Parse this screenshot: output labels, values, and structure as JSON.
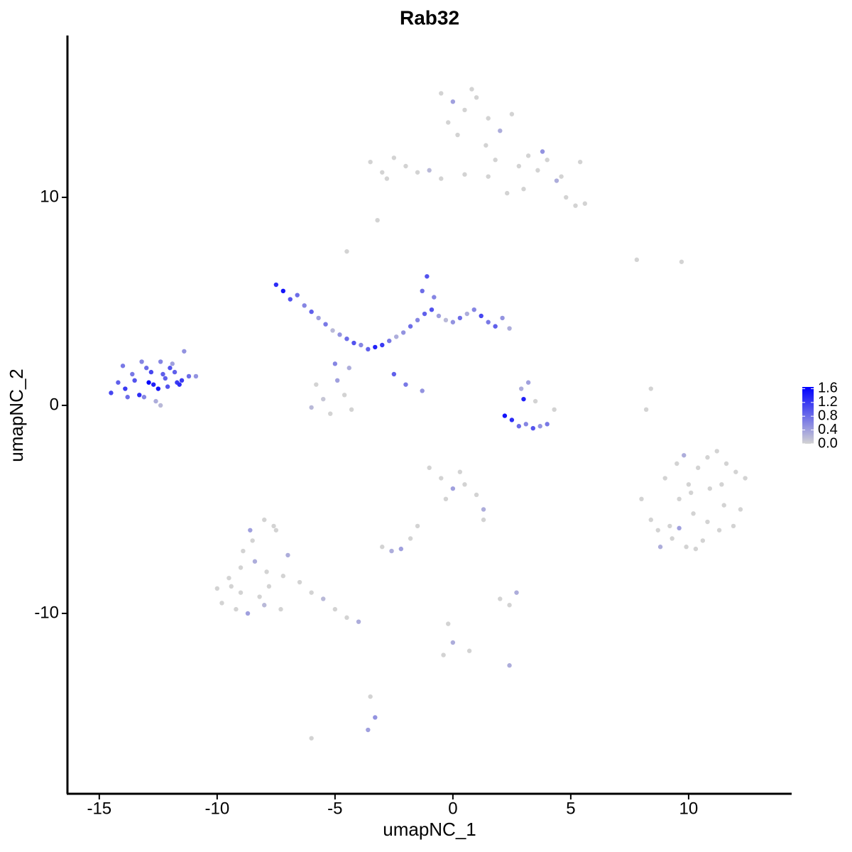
{
  "chart_data": {
    "type": "scatter",
    "title": "Rab32",
    "x_label": "umapNC_1",
    "y_label": "umapNC_2",
    "xlim": [
      -16.35,
      14.37
    ],
    "ylim": [
      -18.67,
      17.78
    ],
    "xticks": [
      -15,
      -10,
      -5,
      0,
      5,
      10
    ],
    "yticks": [
      -10,
      0,
      10
    ],
    "low_color": "#d3d3d3",
    "high_color": "#0000ff",
    "colorlim": [
      0,
      1.65
    ],
    "colorticks": [
      {
        "value": 0,
        "label": "0.0"
      },
      0.4,
      0.8,
      1.2,
      1.6
    ],
    "x": [
      -14.5,
      -14.2,
      -13.9,
      -13.6,
      -13.3,
      -13.0,
      -12.7,
      -12.4,
      -12.1,
      -11.8,
      -11.5,
      -11.2,
      -10.9,
      -14.0,
      -13.5,
      -13.1,
      -12.8,
      -12.5,
      -12.2,
      -11.9,
      -11.6,
      -13.8,
      -13.2,
      -12.6,
      -12.0,
      -11.4,
      -12.9,
      -12.3,
      -11.7,
      -12.4,
      -7.5,
      -7.2,
      -6.9,
      -6.6,
      -6.3,
      -6.0,
      -5.7,
      -5.4,
      -5.1,
      -4.8,
      -4.5,
      -4.2,
      -3.9,
      -3.6,
      -3.3,
      -3.0,
      -2.7,
      -2.4,
      -2.1,
      -1.8,
      -1.5,
      -1.2,
      -0.9,
      -0.6,
      -0.3,
      0.0,
      0.3,
      0.6,
      0.9,
      1.2,
      1.5,
      1.8,
      2.1,
      2.4,
      -1.1,
      -1.3,
      -0.8,
      -5.8,
      -5.5,
      -5.2,
      -4.9,
      -4.6,
      -4.3,
      -6.0,
      -5.0,
      -4.4,
      -4.5,
      -2.5,
      -2.0,
      -1.3,
      -0.5,
      0.0,
      0.5,
      1.0,
      1.5,
      2.0,
      2.5,
      0.2,
      0.8,
      1.4,
      -0.2,
      1.8,
      2.8,
      3.2,
      3.6,
      4.0,
      4.4,
      4.8,
      5.2,
      5.6,
      3.0,
      3.8,
      4.6,
      5.4,
      -3.5,
      -3.0,
      -2.5,
      -2.0,
      -1.5,
      -1.0,
      -0.5,
      0.5,
      1.5,
      -3.2,
      -2.8,
      2.3,
      2.2,
      2.5,
      2.8,
      3.1,
      3.4,
      3.7,
      4.0,
      4.3,
      2.9,
      3.2,
      3.5,
      3.0,
      8.0,
      8.4,
      8.8,
      9.2,
      9.6,
      10.0,
      10.4,
      10.8,
      11.2,
      11.6,
      12.0,
      12.4,
      9.0,
      9.5,
      10.2,
      10.9,
      11.5,
      12.2,
      8.7,
      9.3,
      9.9,
      10.6,
      11.3,
      11.9,
      10.1,
      10.8,
      11.4,
      9.6,
      10.3,
      9.8,
      -10.0,
      -9.5,
      -9.0,
      -8.5,
      -8.0,
      -7.5,
      -7.0,
      -6.5,
      -6.0,
      -5.5,
      -5.0,
      -4.5,
      -4.0,
      -9.8,
      -9.2,
      -8.7,
      -8.2,
      -7.8,
      -7.3,
      -8.9,
      -8.4,
      -7.9,
      -9.4,
      -8.0,
      -7.6,
      -8.6,
      -7.2,
      -9.0,
      -1.0,
      -0.5,
      0.0,
      0.5,
      1.0,
      -0.3,
      0.3,
      -1.5,
      -1.8,
      1.3,
      1.3,
      -3.0,
      -2.6,
      -2.2,
      -0.2,
      2.0,
      2.4,
      2.7,
      -3.5,
      -3.3,
      -3.6,
      0.0,
      -0.4,
      2.4,
      0.7,
      8.2,
      8.4,
      7.8,
      9.7,
      -6.0
    ],
    "y": [
      0.6,
      1.1,
      0.8,
      1.5,
      0.5,
      1.8,
      1.0,
      2.1,
      0.9,
      1.6,
      1.2,
      1.4,
      1.4,
      1.9,
      1.2,
      0.4,
      1.6,
      0.8,
      1.3,
      2.0,
      1.0,
      0.4,
      2.1,
      0.2,
      1.8,
      2.6,
      1.1,
      1.5,
      1.1,
      0.0,
      5.8,
      5.5,
      5.1,
      5.3,
      4.8,
      4.5,
      4.2,
      3.9,
      3.6,
      3.4,
      3.2,
      3.0,
      2.9,
      2.7,
      2.8,
      2.9,
      3.1,
      3.3,
      3.5,
      3.8,
      4.1,
      4.4,
      4.6,
      4.3,
      4.1,
      4.0,
      4.2,
      4.4,
      4.6,
      4.3,
      4.0,
      3.8,
      4.2,
      3.7,
      6.2,
      5.5,
      5.2,
      1.0,
      0.3,
      -0.4,
      1.2,
      0.5,
      -0.2,
      -0.1,
      2.0,
      1.8,
      7.4,
      1.5,
      1.0,
      0.7,
      15.0,
      14.6,
      14.2,
      14.8,
      13.8,
      13.2,
      14.0,
      13.0,
      15.2,
      12.5,
      13.6,
      11.8,
      11.5,
      12.0,
      11.3,
      11.8,
      10.8,
      10.0,
      9.6,
      9.7,
      10.4,
      12.2,
      11.0,
      11.7,
      11.7,
      11.2,
      11.9,
      11.5,
      11.2,
      11.3,
      10.9,
      11.1,
      11.0,
      8.9,
      10.9,
      10.2,
      -0.5,
      -0.7,
      -1.0,
      -0.9,
      -1.1,
      -1.0,
      -0.9,
      -0.2,
      0.8,
      1.1,
      0.2,
      0.3,
      -4.5,
      -5.5,
      -6.8,
      -5.8,
      -4.5,
      -3.8,
      -3.0,
      -2.5,
      -2.2,
      -2.8,
      -3.2,
      -3.5,
      -3.5,
      -2.8,
      -5.2,
      -4.0,
      -4.8,
      -5.0,
      -6.0,
      -6.4,
      -6.8,
      -6.5,
      -6.0,
      -5.8,
      -4.2,
      -5.6,
      -3.8,
      -5.9,
      -6.9,
      -2.4,
      -8.8,
      -8.3,
      -7.8,
      -6.5,
      -5.5,
      -6.0,
      -7.2,
      -8.5,
      -9.0,
      -9.3,
      -9.8,
      -10.2,
      -10.4,
      -9.5,
      -9.8,
      -10.0,
      -9.2,
      -8.7,
      -9.8,
      -7.0,
      -7.5,
      -8.0,
      -8.7,
      -9.6,
      -5.8,
      -6.0,
      -8.2,
      -9.0,
      -3.0,
      -3.5,
      -4.0,
      -3.8,
      -4.3,
      -4.5,
      -3.2,
      -5.8,
      -6.4,
      -5.5,
      -5.0,
      -6.8,
      -7.0,
      -6.9,
      -10.5,
      -9.3,
      -9.6,
      -9.0,
      -14.0,
      -15.0,
      -15.6,
      -11.4,
      -12.0,
      -12.5,
      -11.8,
      -0.2,
      0.8,
      7.0,
      6.9,
      -16.0
    ],
    "values": [
      1.1,
      0.9,
      1.2,
      0.7,
      1.3,
      0.8,
      1.4,
      0.6,
      1.0,
      0.9,
      1.2,
      0.8,
      0.5,
      0.7,
      1.0,
      0.6,
      1.1,
      1.5,
      0.9,
      0.4,
      1.3,
      0.8,
      0.6,
      0.3,
      1.0,
      0.5,
      1.6,
      0.9,
      1.2,
      0.2,
      1.3,
      1.5,
      1.0,
      0.8,
      0.6,
      0.9,
      0.4,
      0.7,
      0.2,
      0.5,
      0.8,
      1.0,
      0.6,
      0.9,
      1.4,
      1.2,
      0.7,
      0.3,
      0.5,
      0.8,
      0.6,
      0.9,
      1.0,
      0.4,
      0.2,
      0.5,
      0.8,
      0.3,
      0.6,
      1.1,
      0.7,
      0.9,
      0.5,
      0.3,
      1.0,
      0.8,
      0.6,
      0.0,
      0.1,
      0.0,
      0.4,
      0.0,
      0.0,
      0.2,
      0.6,
      0.3,
      0.0,
      0.9,
      0.7,
      0.5,
      0.0,
      0.4,
      0.0,
      0.0,
      0.0,
      0.3,
      0.0,
      0.0,
      0.0,
      0.0,
      0.0,
      0.0,
      0.0,
      0.0,
      0.0,
      0.0,
      0.3,
      0.0,
      0.0,
      0.0,
      0.0,
      0.5,
      0.0,
      0.0,
      0.0,
      0.0,
      0.0,
      0.0,
      0.0,
      0.2,
      0.0,
      0.0,
      0.0,
      0.0,
      0.0,
      0.0,
      1.5,
      1.3,
      0.8,
      0.6,
      1.0,
      0.5,
      0.7,
      0.0,
      0.3,
      0.4,
      0.0,
      1.4,
      0.0,
      0.0,
      0.3,
      0.0,
      0.0,
      0.0,
      0.0,
      0.0,
      0.0,
      0.0,
      0.0,
      0.0,
      0.0,
      0.0,
      0.0,
      0.0,
      0.0,
      0.0,
      0.0,
      0.0,
      0.0,
      0.0,
      0.0,
      0.0,
      0.0,
      0.0,
      0.0,
      0.4,
      0.0,
      0.3,
      0.0,
      0.0,
      0.0,
      0.0,
      0.0,
      0.0,
      0.3,
      0.0,
      0.0,
      0.2,
      0.0,
      0.0,
      0.3,
      0.0,
      0.0,
      0.4,
      0.0,
      0.0,
      0.0,
      0.0,
      0.3,
      0.0,
      0.0,
      0.2,
      0.0,
      0.4,
      0.0,
      0.0,
      0.0,
      0.0,
      0.4,
      0.0,
      0.0,
      0.0,
      0.0,
      0.0,
      0.0,
      0.0,
      0.3,
      0.0,
      0.3,
      0.4,
      0.0,
      0.0,
      0.0,
      0.3,
      0.0,
      0.5,
      0.4,
      0.3,
      0.0,
      0.3,
      0.0,
      0.0,
      0.0,
      0.0,
      0.0,
      0.0
    ]
  }
}
